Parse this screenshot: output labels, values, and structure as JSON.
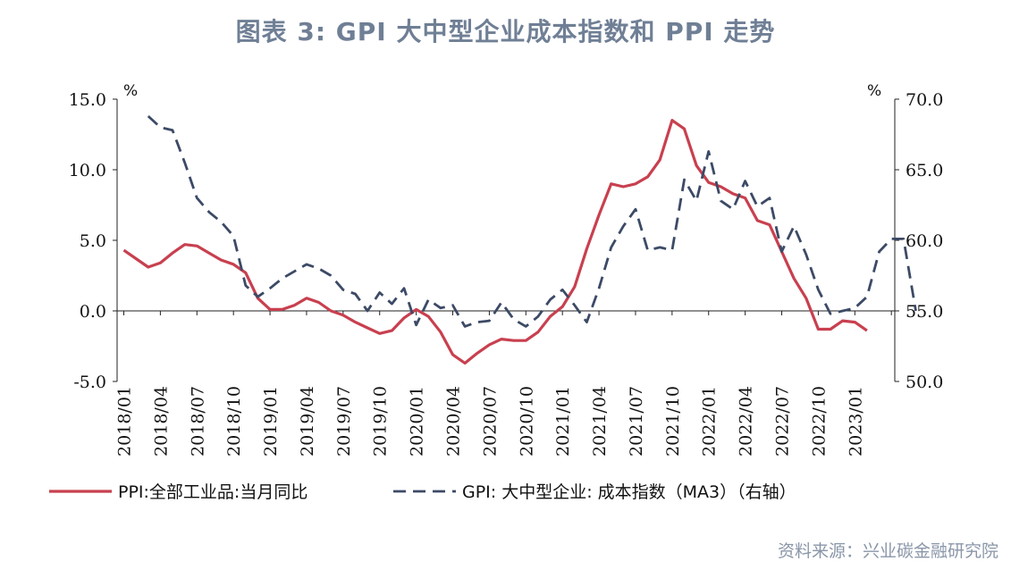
{
  "title": "图表 3:  GPI 大中型企业成本指数和 PPI 走势",
  "source": "资料来源：兴业碳金融研究院",
  "chart_data": {
    "type": "line",
    "left_axis": {
      "unit": "%",
      "min": -5,
      "max": 15,
      "ticks": [
        -5,
        0,
        5,
        10,
        15
      ],
      "tick_labels": [
        "-5.0",
        "0.0",
        "5.0",
        "10.0",
        "15.0"
      ]
    },
    "right_axis": {
      "unit": "%",
      "min": 50,
      "max": 70,
      "ticks": [
        50,
        55,
        60,
        65,
        70
      ],
      "tick_labels": [
        "50.0",
        "55.0",
        "60.0",
        "65.0",
        "70.0"
      ]
    },
    "x_start": "2018/01",
    "x_labels": [
      "2018/01",
      "2018/04",
      "2018/07",
      "2018/10",
      "2019/01",
      "2019/04",
      "2019/07",
      "2019/10",
      "2020/01",
      "2020/04",
      "2020/07",
      "2020/10",
      "2021/01",
      "2021/04",
      "2021/07",
      "2021/10",
      "2022/01",
      "2022/04",
      "2022/07",
      "2022/10",
      "2023/01"
    ],
    "series": [
      {
        "name": "PPI:全部工业品:当月同比",
        "axis": "left",
        "color": "#c8404f",
        "style": "solid",
        "values": [
          4.3,
          3.7,
          3.1,
          3.4,
          4.1,
          4.7,
          4.6,
          4.1,
          3.6,
          3.3,
          2.7,
          0.9,
          0.1,
          0.1,
          0.4,
          0.9,
          0.6,
          0.0,
          -0.3,
          -0.8,
          -1.2,
          -1.6,
          -1.4,
          -0.5,
          0.1,
          -0.4,
          -1.5,
          -3.1,
          -3.7,
          -3.0,
          -2.4,
          -2.0,
          -2.1,
          -2.1,
          -1.5,
          -0.4,
          0.3,
          1.7,
          4.4,
          6.8,
          9.0,
          8.8,
          9.0,
          9.5,
          10.7,
          13.5,
          12.9,
          10.3,
          9.1,
          8.8,
          8.3,
          8.0,
          6.4,
          6.1,
          4.2,
          2.3,
          0.9,
          -1.3,
          -1.3,
          -0.7,
          -0.8,
          -1.4
        ]
      },
      {
        "name": "GPI：大中型企业：成本指数（MA3）（右轴）",
        "axis": "right",
        "color": "#3c4a66",
        "style": "dashed",
        "values": [
          null,
          null,
          68.8,
          68.0,
          67.8,
          65.5,
          63.0,
          62.0,
          61.3,
          60.3,
          56.8,
          56.0,
          56.6,
          57.3,
          57.8,
          58.3,
          58.0,
          57.5,
          56.5,
          56.2,
          55.0,
          56.3,
          55.5,
          56.6,
          54.0,
          55.8,
          55.2,
          55.4,
          53.9,
          54.2,
          54.3,
          55.6,
          54.4,
          53.9,
          54.6,
          55.8,
          56.5,
          55.4,
          54.2,
          56.6,
          59.5,
          61.0,
          62.2,
          59.3,
          59.5,
          59.3,
          64.3,
          62.8,
          66.3,
          62.8,
          62.2,
          64.2,
          62.4,
          63.0,
          59.2,
          61.0,
          59.0,
          56.5,
          54.8,
          55.0,
          55.2,
          56.0,
          59.2,
          60.1,
          60.1,
          55.0
        ]
      }
    ],
    "legend": {
      "placement": "bottom",
      "items": [
        {
          "label": "PPI:全部工业品:当月同比",
          "style": "solid"
        },
        {
          "label": "GPI: 大中型企业: 成本指数（MA3）（右轴）",
          "style": "dashed"
        }
      ]
    }
  }
}
